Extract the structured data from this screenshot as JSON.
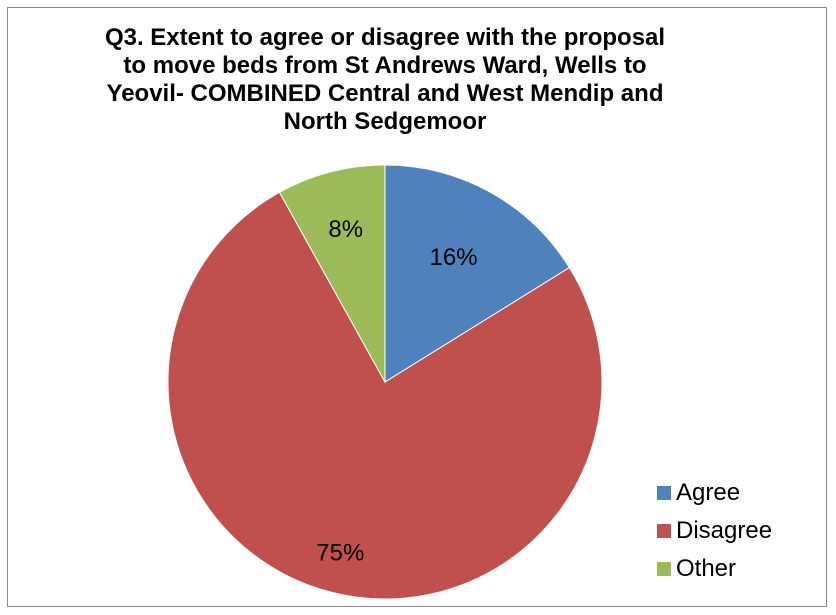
{
  "chart_data": {
    "type": "pie",
    "title": [
      "Q3. Extent to agree or disagree with the proposal",
      "to move beds from St Andrews Ward, Wells to",
      "Yeovil- COMBINED Central and West Mendip and",
      "North Sedgemoor"
    ],
    "categories": [
      "Agree",
      "Disagree",
      "Other"
    ],
    "values": [
      16,
      75,
      8
    ],
    "data_labels": [
      "16%",
      "75%",
      "8%"
    ],
    "colors": [
      "#4F81BD",
      "#C0504D",
      "#9BBB59"
    ],
    "legend_position": "bottom-right"
  }
}
